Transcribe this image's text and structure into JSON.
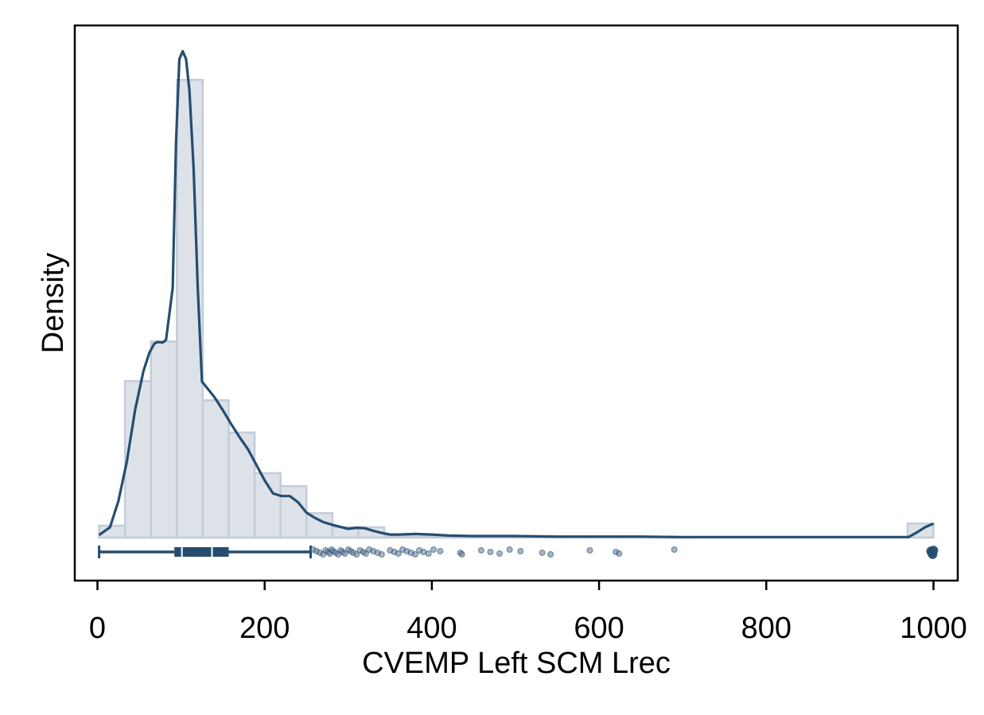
{
  "chart_data": {
    "type": "histogram",
    "xlabel": "CVEMP Left SCM Lrec",
    "ylabel": "Density",
    "xlim": [
      -15,
      1030
    ],
    "xticks": [
      0,
      200,
      400,
      600,
      800,
      1000
    ],
    "grid": false,
    "legend": "none",
    "colors": {
      "bar_fill": "#dde2e9",
      "bar_stroke": "#c3cdd8",
      "line": "#264d70",
      "box": "#264d70",
      "points": "#5c7a94"
    },
    "histogram": {
      "bin_width": 31,
      "bins": [
        {
          "start": 2,
          "density": 0.023
        },
        {
          "start": 33,
          "density": 0.301
        },
        {
          "start": 64,
          "density": 0.377
        },
        {
          "start": 95,
          "density": 0.88
        },
        {
          "start": 126,
          "density": 0.264
        },
        {
          "start": 157,
          "density": 0.202
        },
        {
          "start": 188,
          "density": 0.124
        },
        {
          "start": 219,
          "density": 0.099
        },
        {
          "start": 250,
          "density": 0.047
        },
        {
          "start": 281,
          "density": 0.02
        },
        {
          "start": 312,
          "density": 0.02
        },
        {
          "start": 343,
          "density": 0.003
        },
        {
          "start": 374,
          "density": 0.002
        },
        {
          "start": 405,
          "density": 0.001
        },
        {
          "start": 436,
          "density": 0.001
        },
        {
          "start": 467,
          "density": 0.001
        },
        {
          "start": 498,
          "density": 0.001
        },
        {
          "start": 529,
          "density": 0.001
        },
        {
          "start": 560,
          "density": 0.001
        },
        {
          "start": 591,
          "density": 0.001
        },
        {
          "start": 622,
          "density": 0.001
        },
        {
          "start": 653,
          "density": 0.001
        },
        {
          "start": 684,
          "density": 0.001
        },
        {
          "start": 969,
          "density": 0.027
        }
      ]
    },
    "density_curve": {
      "x": [
        2,
        15,
        25,
        35,
        45,
        55,
        62,
        68,
        72,
        78,
        82,
        90,
        94,
        98,
        102,
        106,
        110,
        115,
        120,
        125,
        130,
        140,
        150,
        160,
        170,
        180,
        190,
        200,
        210,
        220,
        230,
        240,
        250,
        260,
        270,
        280,
        290,
        300,
        310,
        320,
        330,
        340,
        350,
        360,
        380,
        400,
        420,
        450,
        500,
        550,
        600,
        650,
        700,
        750,
        800,
        850,
        900,
        950,
        970,
        980,
        990,
        1000
      ],
      "y": [
        0.005,
        0.02,
        0.07,
        0.145,
        0.245,
        0.32,
        0.355,
        0.373,
        0.376,
        0.375,
        0.38,
        0.48,
        0.76,
        0.92,
        0.935,
        0.92,
        0.86,
        0.71,
        0.48,
        0.3,
        0.29,
        0.27,
        0.245,
        0.218,
        0.193,
        0.17,
        0.14,
        0.11,
        0.085,
        0.08,
        0.08,
        0.068,
        0.048,
        0.038,
        0.03,
        0.025,
        0.021,
        0.017,
        0.019,
        0.018,
        0.013,
        0.009,
        0.006,
        0.006,
        0.007,
        0.006,
        0.004,
        0.003,
        0.003,
        0.002,
        0.002,
        0.002,
        0.001,
        0.001,
        0.001,
        0.001,
        0.001,
        0.001,
        0.001,
        0.01,
        0.02,
        0.027
      ]
    },
    "boxplot": {
      "whisker_low": 2,
      "q1": 92,
      "mean": 101,
      "median": 137,
      "q3": 157,
      "whisker_high": 255,
      "outliers": [
        258,
        262,
        266,
        270,
        273,
        276,
        278,
        280,
        282,
        285,
        288,
        291,
        293,
        296,
        300,
        303,
        306,
        310,
        314,
        318,
        321,
        325,
        330,
        335,
        340,
        350,
        355,
        360,
        365,
        370,
        375,
        380,
        385,
        390,
        396,
        402,
        410,
        434,
        436,
        459,
        470,
        481,
        493,
        506,
        532,
        542,
        589,
        620,
        624,
        690,
        997,
        998,
        999,
        1000
      ]
    }
  }
}
